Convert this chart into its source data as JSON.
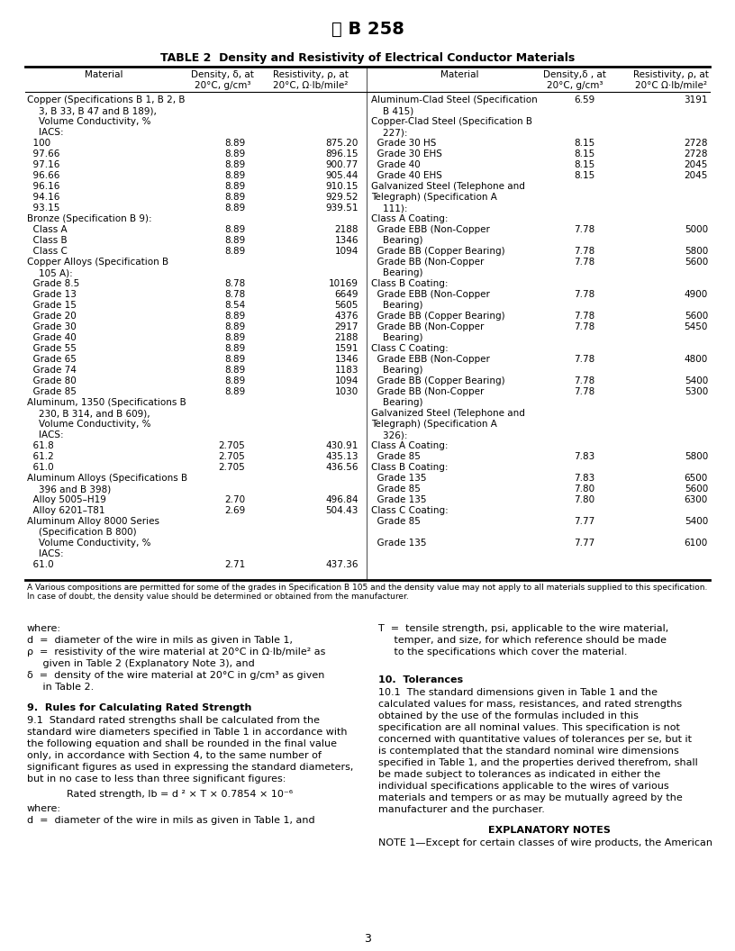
{
  "title_logo": "Ⓜ B 258",
  "table_title": "TABLE 2  Density and Resistivity of Electrical Conductor Materials",
  "left_rows": [
    [
      "Copper (Specifications B 1, B 2, B",
      "",
      ""
    ],
    [
      "    3, B 33, B 47 and B 189),",
      "",
      ""
    ],
    [
      "    Volume Conductivity, %",
      "",
      ""
    ],
    [
      "    IACS:",
      "",
      ""
    ],
    [
      "  100",
      "8.89",
      "875.20"
    ],
    [
      "  97.66",
      "8.89",
      "896.15"
    ],
    [
      "  97.16",
      "8.89",
      "900.77"
    ],
    [
      "  96.66",
      "8.89",
      "905.44"
    ],
    [
      "  96.16",
      "8.89",
      "910.15"
    ],
    [
      "  94.16",
      "8.89",
      "929.52"
    ],
    [
      "  93.15",
      "8.89",
      "939.51"
    ],
    [
      "Bronze (Specification B 9):",
      "",
      ""
    ],
    [
      "  Class A",
      "8.89",
      "2188"
    ],
    [
      "  Class B",
      "8.89",
      "1346"
    ],
    [
      "  Class C",
      "8.89",
      "1094"
    ],
    [
      "Copper Alloys (Specification B",
      "",
      ""
    ],
    [
      "    105 A):",
      "",
      ""
    ],
    [
      "  Grade 8.5",
      "8.78",
      "10169"
    ],
    [
      "  Grade 13",
      "8.78",
      "6649"
    ],
    [
      "  Grade 15",
      "8.54",
      "5605"
    ],
    [
      "  Grade 20",
      "8.89",
      "4376"
    ],
    [
      "  Grade 30",
      "8.89",
      "2917"
    ],
    [
      "  Grade 40",
      "8.89",
      "2188"
    ],
    [
      "  Grade 55",
      "8.89",
      "1591"
    ],
    [
      "  Grade 65",
      "8.89",
      "1346"
    ],
    [
      "  Grade 74",
      "8.89",
      "1183"
    ],
    [
      "  Grade 80",
      "8.89",
      "1094"
    ],
    [
      "  Grade 85",
      "8.89",
      "1030"
    ],
    [
      "Aluminum, 1350 (Specifications B",
      "",
      ""
    ],
    [
      "    230, B 314, and B 609),",
      "",
      ""
    ],
    [
      "    Volume Conductivity, %",
      "",
      ""
    ],
    [
      "    IACS:",
      "",
      ""
    ],
    [
      "  61.8",
      "2.705",
      "430.91"
    ],
    [
      "  61.2",
      "2.705",
      "435.13"
    ],
    [
      "  61.0",
      "2.705",
      "436.56"
    ],
    [
      "Aluminum Alloys (Specifications B",
      "",
      ""
    ],
    [
      "    396 and B 398)",
      "",
      ""
    ],
    [
      "  Alloy 5005–H19",
      "2.70",
      "496.84"
    ],
    [
      "  Alloy 6201–T81",
      "2.69",
      "504.43"
    ],
    [
      "Aluminum Alloy 8000 Series",
      "",
      ""
    ],
    [
      "    (Specification B 800)",
      "",
      ""
    ],
    [
      "    Volume Conductivity, %",
      "",
      ""
    ],
    [
      "    IACS:",
      "",
      ""
    ],
    [
      "  61.0",
      "2.71",
      "437.36"
    ]
  ],
  "right_rows": [
    [
      "Aluminum-Clad Steel (Specification",
      "6.59",
      "3191"
    ],
    [
      "    B 415)",
      "",
      ""
    ],
    [
      "Copper-Clad Steel (Specification B",
      "",
      ""
    ],
    [
      "    227):",
      "",
      ""
    ],
    [
      "  Grade 30 HS",
      "8.15",
      "2728"
    ],
    [
      "  Grade 30 EHS",
      "8.15",
      "2728"
    ],
    [
      "  Grade 40",
      "8.15",
      "2045"
    ],
    [
      "  Grade 40 EHS",
      "8.15",
      "2045"
    ],
    [
      "Galvanized Steel (Telephone and",
      "",
      ""
    ],
    [
      "Telegraph) (Specification A",
      "",
      ""
    ],
    [
      "    111):",
      "",
      ""
    ],
    [
      "Class A Coating:",
      "",
      ""
    ],
    [
      "  Grade EBB (Non-Copper",
      "7.78",
      "5000"
    ],
    [
      "    Bearing)",
      "",
      ""
    ],
    [
      "  Grade BB (Copper Bearing)",
      "7.78",
      "5800"
    ],
    [
      "  Grade BB (Non-Copper",
      "7.78",
      "5600"
    ],
    [
      "    Bearing)",
      "",
      ""
    ],
    [
      "Class B Coating:",
      "",
      ""
    ],
    [
      "  Grade EBB (Non-Copper",
      "7.78",
      "4900"
    ],
    [
      "    Bearing)",
      "",
      ""
    ],
    [
      "  Grade BB (Copper Bearing)",
      "7.78",
      "5600"
    ],
    [
      "  Grade BB (Non-Copper",
      "7.78",
      "5450"
    ],
    [
      "    Bearing)",
      "",
      ""
    ],
    [
      "Class C Coating:",
      "",
      ""
    ],
    [
      "  Grade EBB (Non-Copper",
      "7.78",
      "4800"
    ],
    [
      "    Bearing)",
      "",
      ""
    ],
    [
      "  Grade BB (Copper Bearing)",
      "7.78",
      "5400"
    ],
    [
      "  Grade BB (Non-Copper",
      "7.78",
      "5300"
    ],
    [
      "    Bearing)",
      "",
      ""
    ],
    [
      "Galvanized Steel (Telephone and",
      "",
      ""
    ],
    [
      "Telegraph) (Specification A",
      "",
      ""
    ],
    [
      "    326):",
      "",
      ""
    ],
    [
      "Class A Coating:",
      "",
      ""
    ],
    [
      "  Grade 85",
      "7.83",
      "5800"
    ],
    [
      "Class B Coating:",
      "",
      ""
    ],
    [
      "  Grade 135",
      "7.83",
      "6500"
    ],
    [
      "  Grade 85",
      "7.80",
      "5600"
    ],
    [
      "  Grade 135",
      "7.80",
      "6300"
    ],
    [
      "Class C Coating:",
      "",
      ""
    ],
    [
      "  Grade 85",
      "7.77",
      "5400"
    ],
    [
      "",
      "",
      ""
    ],
    [
      "  Grade 135",
      "7.77",
      "6100"
    ],
    [
      "",
      "",
      ""
    ]
  ],
  "footnote_a": "A Various compositions are permitted for some of the grades in Specification B 105 and the density value may not apply to all materials supplied to this specification.",
  "footnote_b": "In case of doubt, the density value should be determined or obtained from the manufacturer.",
  "left_body": [
    "where:",
    "d  =  diameter of the wire in mils as given in Table 1,",
    "ρ  =  resistivity of the wire material at 20°C in Ω·lb/mile² as",
    "     given in Table 2 (Explanatory Note 3), and",
    "δ  =  density of the wire material at 20°C in g/cm³ as given",
    "     in Table 2."
  ],
  "right_body_T": [
    "T  =  tensile strength, psi, applicable to the wire material,",
    "     temper, and size, for which reference should be made",
    "     to the specifications which cover the material."
  ],
  "section9_title": "9.  Rules for Calculating Rated Strength",
  "section9_lines": [
    "9.1  Standard rated strengths shall be calculated from the",
    "standard wire diameters specified in Table 1 in accordance with",
    "the following equation and shall be rounded in the final value",
    "only, in accordance with Section 4, to the same number of",
    "significant figures as used in expressing the standard diameters,",
    "but in no case to less than three significant figures:"
  ],
  "formula": "Rated strength, lb = d ² × T × 0.7854 × 10⁻⁶",
  "after_formula": [
    "where:",
    "d  =  diameter of the wire in mils as given in Table 1, and"
  ],
  "section10_title": "10.  Tolerances",
  "section10_lines": [
    "10.1  The standard dimensions given in Table 1 and the",
    "calculated values for mass, resistances, and rated strengths",
    "obtained by the use of the formulas included in this",
    "specification are all nominal values. This specification is not",
    "concerned with quantitative values of tolerances per se, but it",
    "is contemplated that the standard nominal wire dimensions",
    "specified in Table 1, and the properties derived therefrom, shall",
    "be made subject to tolerances as indicated in either the",
    "individual specifications applicable to the wires of various",
    "materials and tempers or as may be mutually agreed by the",
    "manufacturer and the purchaser."
  ],
  "explanatory_title": "EXPLANATORY NOTES",
  "explanatory_text": "NOTE 1—Except for certain classes of wire products, the American",
  "page_number": "3"
}
